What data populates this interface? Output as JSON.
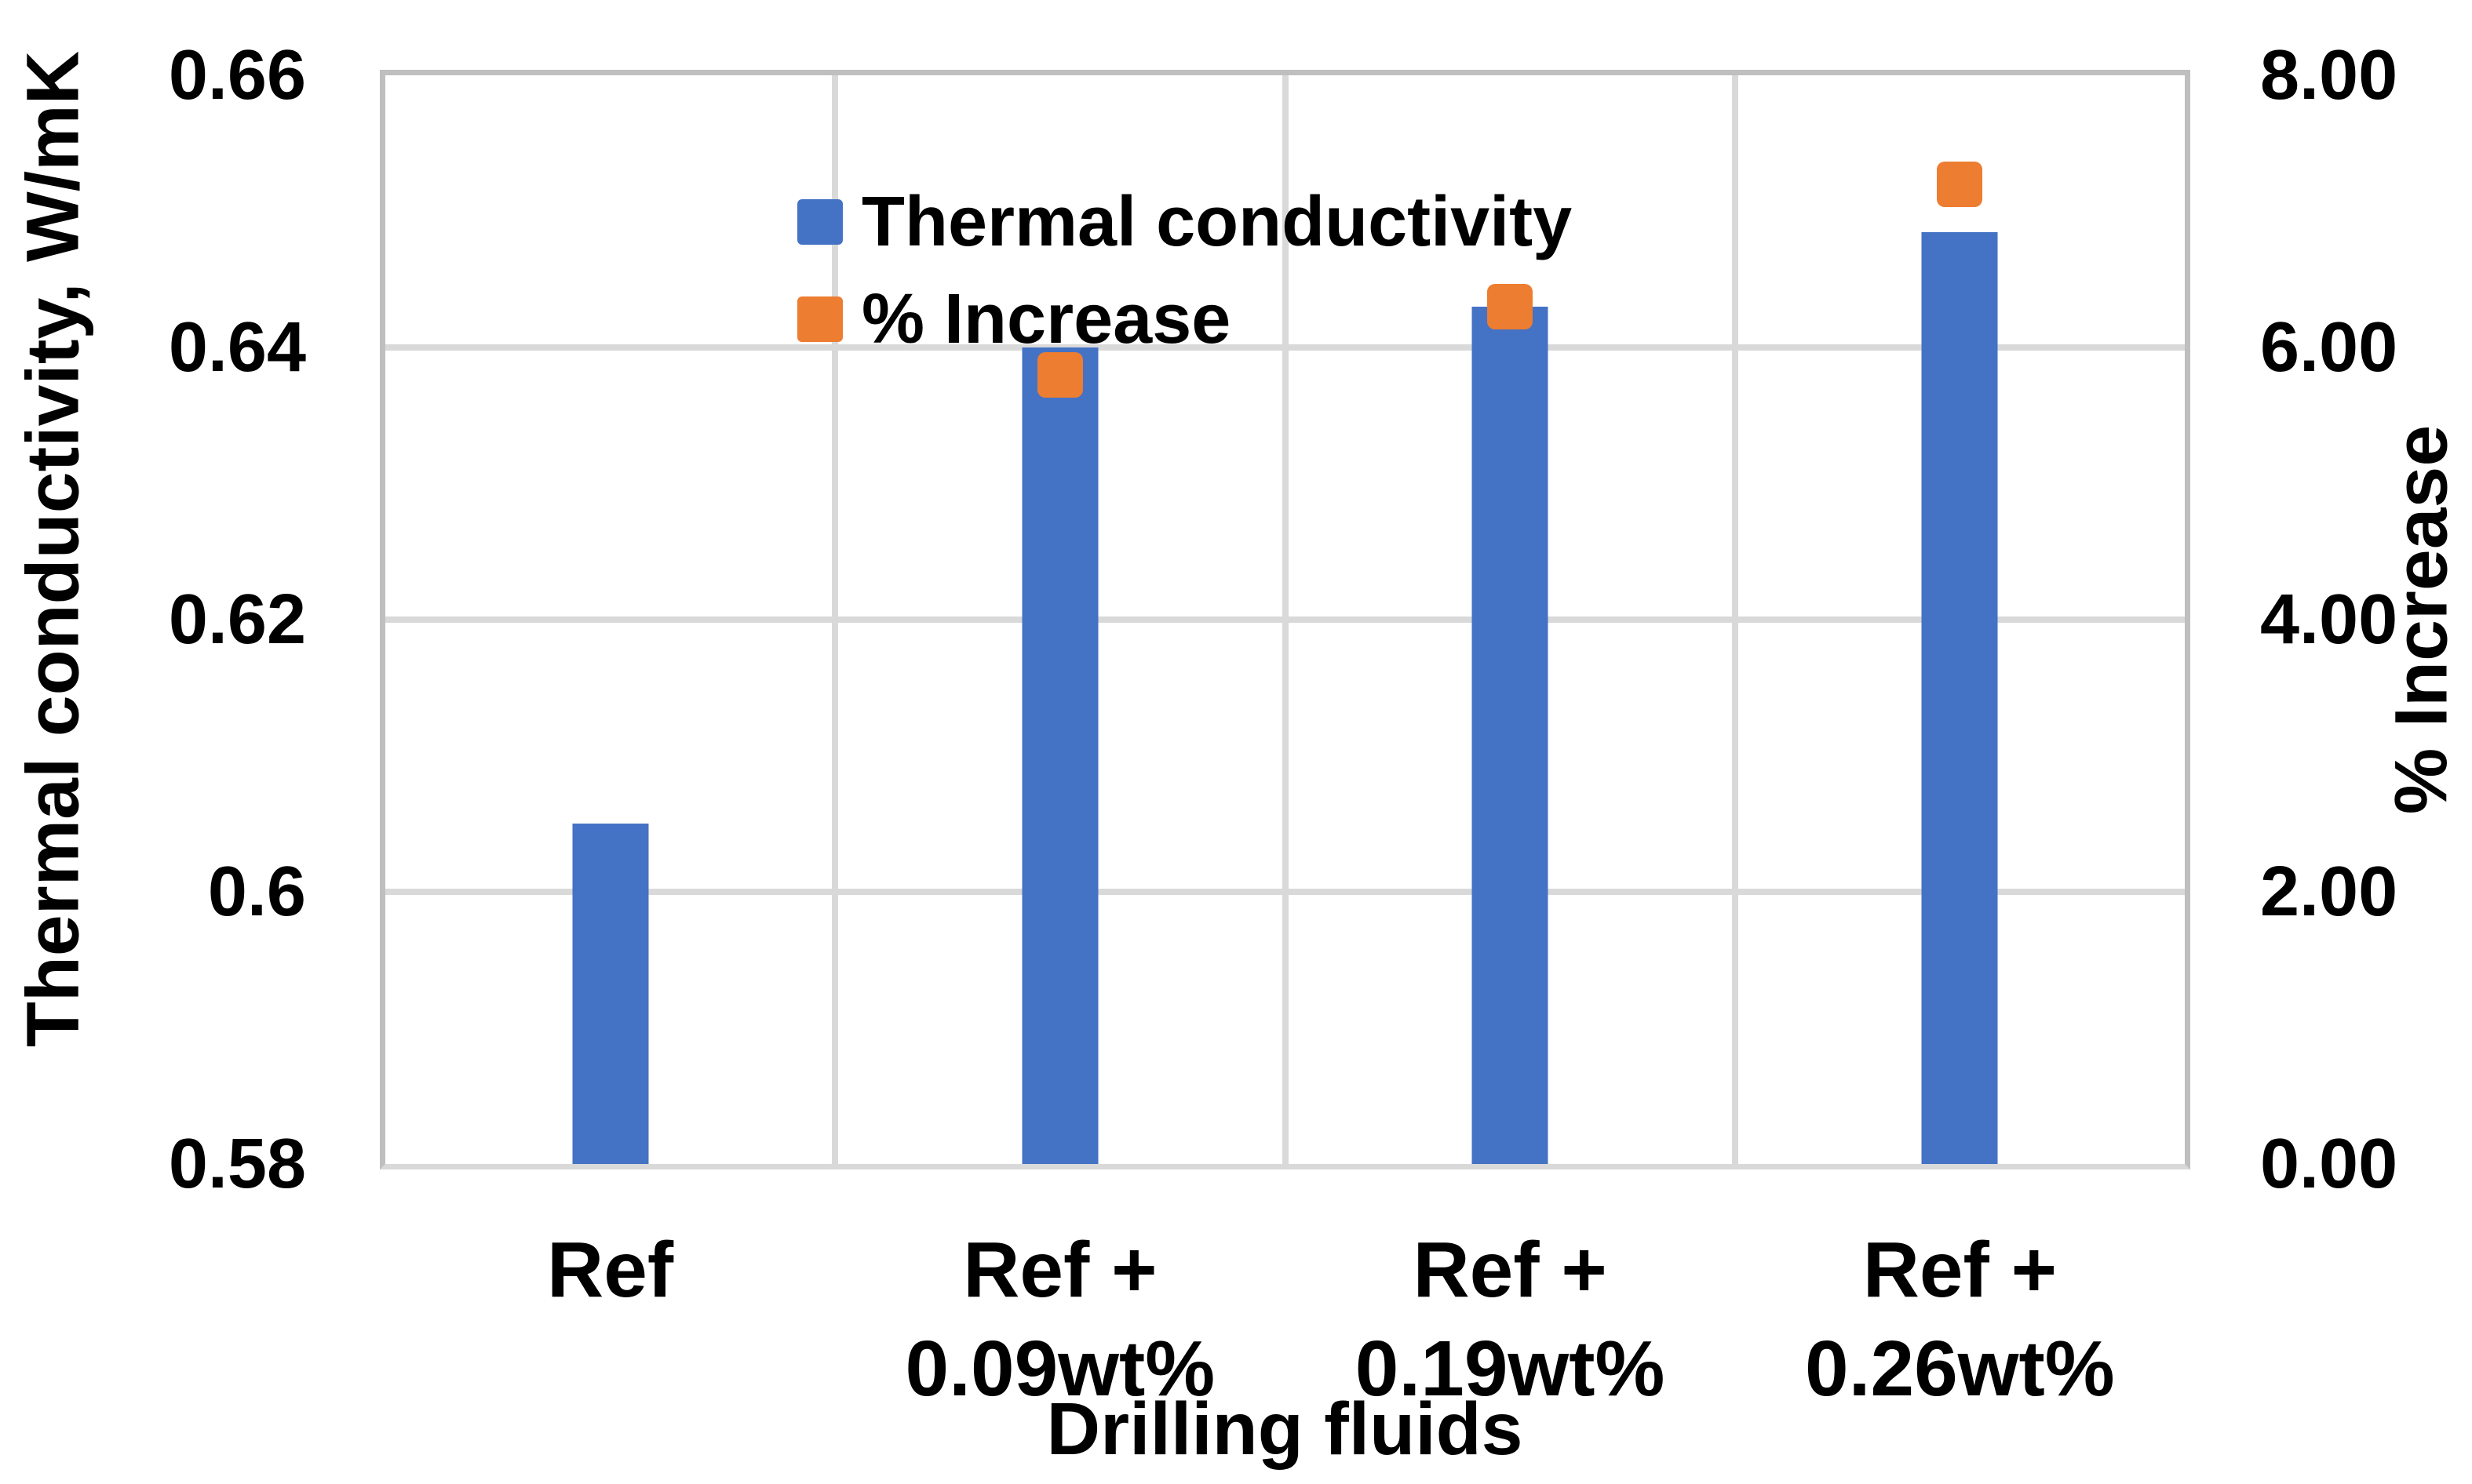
{
  "chart_data": {
    "type": "bar",
    "title": "",
    "categories": [
      "Ref",
      "Ref +\n0.09wt%",
      "Ref +\n0.19wt%",
      "Ref +\n0.26wt%"
    ],
    "series": [
      {
        "name": "Thermal conductivity",
        "kind": "bar",
        "axis": "left",
        "color": "#4472C4",
        "values": [
          0.605,
          0.64,
          0.643,
          0.6485
        ]
      },
      {
        "name": "% Increase",
        "kind": "square-marker",
        "axis": "right",
        "color": "#ED7D31",
        "values": [
          null,
          5.8,
          6.3,
          7.2
        ]
      }
    ],
    "left_axis": {
      "title": "Thermal conductivity, W/mK",
      "min": 0.58,
      "max": 0.66,
      "ticks": [
        {
          "label": "0.58",
          "value": 0.58
        },
        {
          "label": "0.6",
          "value": 0.6
        },
        {
          "label": "0.62",
          "value": 0.62
        },
        {
          "label": "0.64",
          "value": 0.64
        },
        {
          "label": "0.66",
          "value": 0.66
        }
      ]
    },
    "right_axis": {
      "title": "% Increase",
      "min": 0,
      "max": 8,
      "ticks": [
        {
          "label": "0.00",
          "value": 0
        },
        {
          "label": "2.00",
          "value": 2
        },
        {
          "label": "4.00",
          "value": 4
        },
        {
          "label": "6.00",
          "value": 6
        },
        {
          "label": "8.00",
          "value": 8
        }
      ]
    },
    "x_axis": {
      "title": "Drilling fluids"
    },
    "legend": {
      "position": "top-left-inside"
    },
    "grid": {
      "horizontal": true,
      "vertical": true,
      "gridline_color": "#D9D9D9",
      "border_color": "#BFBFBF"
    },
    "text_color": "#000000",
    "background_color": "#FFFFFF"
  }
}
